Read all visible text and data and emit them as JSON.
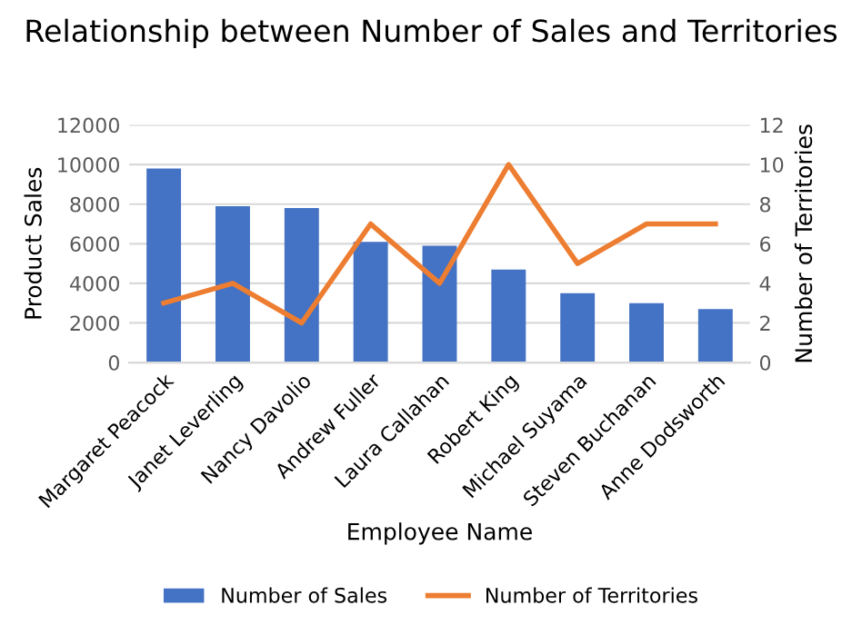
{
  "chart_data": {
    "type": "bar",
    "title": "Relationship between Number of Sales and Territories",
    "xlabel": "Employee Name",
    "ylabel": "Product Sales",
    "y2label": "Number of Territories",
    "categories": [
      "Margaret Peacock",
      "Janet Leverling",
      "Nancy Davolio",
      "Andrew Fuller",
      "Laura Callahan",
      "Robert King",
      "Michael Suyama",
      "Steven Buchanan",
      "Anne Dodsworth"
    ],
    "series": [
      {
        "name": "Number of Sales",
        "color": "#4472c4",
        "values": [
          9800,
          7900,
          7800,
          6100,
          5900,
          4700,
          3500,
          3000,
          2700
        ]
      },
      {
        "name": "Number of Territories",
        "type": "line",
        "axis": "y2",
        "color": "#ed7d31",
        "values": [
          3,
          4,
          2,
          7,
          4,
          10,
          5,
          7,
          7
        ]
      }
    ],
    "ylim": [
      0,
      12000
    ],
    "yticks": [
      0,
      2000,
      4000,
      6000,
      8000,
      10000,
      12000
    ],
    "y2lim": [
      0,
      12
    ],
    "y2ticks": [
      0,
      2,
      4,
      6,
      8,
      10,
      12
    ],
    "grid": "y",
    "legend": "bottom",
    "marker": "none",
    "line_style": "solid"
  }
}
